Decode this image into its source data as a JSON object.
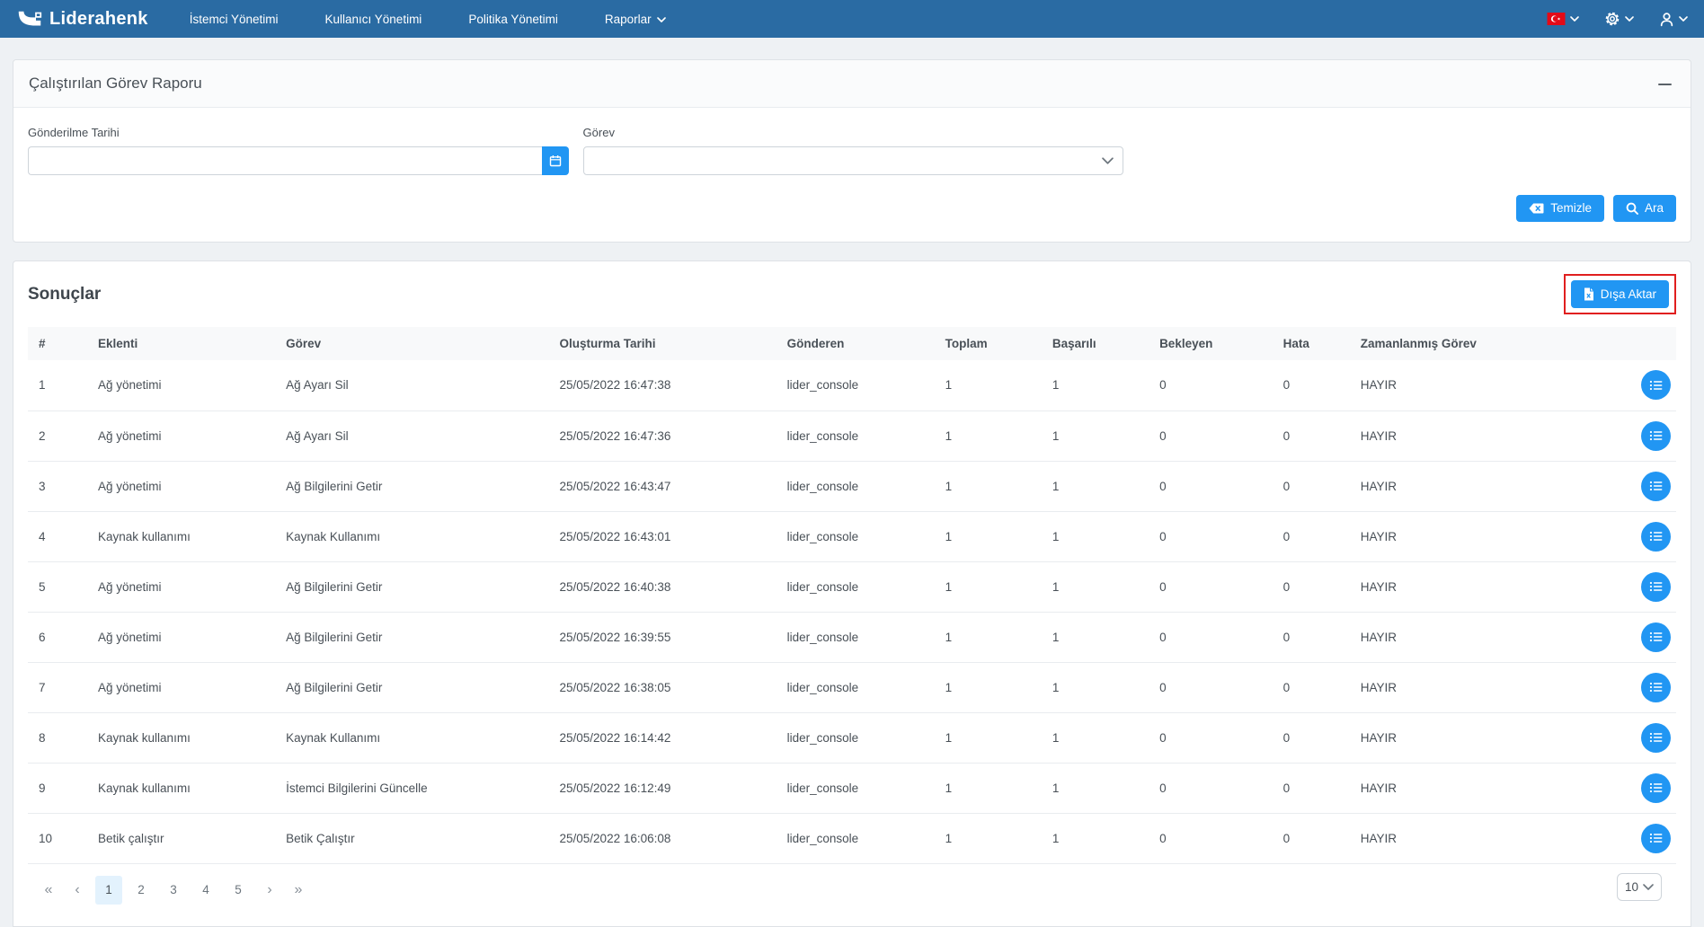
{
  "navbar": {
    "brand": "Liderahenk",
    "items": [
      {
        "label": "İstemci Yönetimi",
        "has_dropdown": false
      },
      {
        "label": "Kullanıcı Yönetimi",
        "has_dropdown": false
      },
      {
        "label": "Politika Yönetimi",
        "has_dropdown": false
      },
      {
        "label": "Raporlar",
        "has_dropdown": true
      }
    ]
  },
  "filter_panel": {
    "title": "Çalıştırılan Görev Raporu",
    "date_field": {
      "label": "Gönderilme Tarihi",
      "value": ""
    },
    "task_field": {
      "label": "Görev",
      "value": ""
    },
    "clear_button": "Temizle",
    "search_button": "Ara"
  },
  "results": {
    "title": "Sonuçlar",
    "export_button": "Dışa Aktar",
    "table": {
      "headers": [
        "#",
        "Eklenti",
        "Görev",
        "Oluşturma Tarihi",
        "Gönderen",
        "Toplam",
        "Başarılı",
        "Bekleyen",
        "Hata",
        "Zamanlanmış Görev",
        ""
      ],
      "rows": [
        [
          "1",
          "Ağ yönetimi",
          "Ağ Ayarı Sil",
          "25/05/2022 16:47:38",
          "lider_console",
          "1",
          "1",
          "0",
          "0",
          "HAYIR"
        ],
        [
          "2",
          "Ağ yönetimi",
          "Ağ Ayarı Sil",
          "25/05/2022 16:47:36",
          "lider_console",
          "1",
          "1",
          "0",
          "0",
          "HAYIR"
        ],
        [
          "3",
          "Ağ yönetimi",
          "Ağ Bilgilerini Getir",
          "25/05/2022 16:43:47",
          "lider_console",
          "1",
          "1",
          "0",
          "0",
          "HAYIR"
        ],
        [
          "4",
          "Kaynak kullanımı",
          "Kaynak Kullanımı",
          "25/05/2022 16:43:01",
          "lider_console",
          "1",
          "1",
          "0",
          "0",
          "HAYIR"
        ],
        [
          "5",
          "Ağ yönetimi",
          "Ağ Bilgilerini Getir",
          "25/05/2022 16:40:38",
          "lider_console",
          "1",
          "1",
          "0",
          "0",
          "HAYIR"
        ],
        [
          "6",
          "Ağ yönetimi",
          "Ağ Bilgilerini Getir",
          "25/05/2022 16:39:55",
          "lider_console",
          "1",
          "1",
          "0",
          "0",
          "HAYIR"
        ],
        [
          "7",
          "Ağ yönetimi",
          "Ağ Bilgilerini Getir",
          "25/05/2022 16:38:05",
          "lider_console",
          "1",
          "1",
          "0",
          "0",
          "HAYIR"
        ],
        [
          "8",
          "Kaynak kullanımı",
          "Kaynak Kullanımı",
          "25/05/2022 16:14:42",
          "lider_console",
          "1",
          "1",
          "0",
          "0",
          "HAYIR"
        ],
        [
          "9",
          "Kaynak kullanımı",
          "İstemci Bilgilerini Güncelle",
          "25/05/2022 16:12:49",
          "lider_console",
          "1",
          "1",
          "0",
          "0",
          "HAYIR"
        ],
        [
          "10",
          "Betik çalıştır",
          "Betik Çalıştır",
          "25/05/2022 16:06:08",
          "lider_console",
          "1",
          "1",
          "0",
          "0",
          "HAYIR"
        ]
      ]
    },
    "pagination": {
      "pages": [
        "1",
        "2",
        "3",
        "4",
        "5"
      ],
      "active_page": "1",
      "page_size": "10"
    }
  },
  "icons": {
    "first_page": "«",
    "prev_page": "‹",
    "next_page": "›",
    "last_page": "»"
  },
  "colors": {
    "navbar_bg": "#2a6ba3",
    "primary": "#2196f3",
    "highlight_bg": "#e3f2fd",
    "flag_red": "#e30a17",
    "export_outline": "#e01f1f",
    "text_color": "#495057",
    "page_bg": "#eef1f4"
  }
}
